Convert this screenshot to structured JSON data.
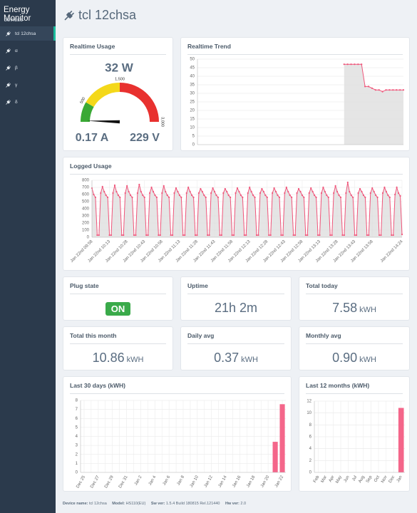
{
  "sidebar": {
    "title": "Energy Monitor",
    "section": "DEVICES",
    "items": [
      "tcl 12chsa",
      "α",
      "β",
      "γ",
      "δ"
    ]
  },
  "header": {
    "title": "tcl 12chsa"
  },
  "gauge": {
    "title": "Realtime Usage",
    "value": 32,
    "value_label": "32 W",
    "range": [
      0,
      3000
    ],
    "ticks": [
      500,
      {
        "value": 1500,
        "label": "1,500"
      },
      {
        "value": 3000,
        "label": "3,000"
      }
    ],
    "band_colors": [
      "#3aa935",
      "#f4d81a",
      "#e8312f"
    ],
    "current": "0.17 A",
    "voltage": "229 V"
  },
  "stats": [
    {
      "title": "Plug state",
      "badge": "ON"
    },
    {
      "title": "Uptime",
      "value": "21h 2m"
    },
    {
      "title": "Total today",
      "value": "7.58",
      "unit": "kWH"
    },
    {
      "title": "Total this month",
      "value": "10.86",
      "unit": "kWH"
    },
    {
      "title": "Daily avg",
      "value": "0.37",
      "unit": "kWH"
    },
    {
      "title": "Monthly avg",
      "value": "0.90",
      "unit": "kWH"
    }
  ],
  "chart_data": [
    {
      "type": "line",
      "title": "Realtime Trend",
      "color": "#f0557a",
      "fill": true,
      "fill_color": "#dcdcdc",
      "grid": true,
      "ylim": [
        0,
        50
      ],
      "yticks": [
        0,
        5,
        10,
        15,
        20,
        25,
        30,
        35,
        40,
        45,
        50
      ],
      "values": [
        null,
        null,
        null,
        null,
        null,
        null,
        null,
        null,
        null,
        null,
        null,
        null,
        null,
        null,
        null,
        null,
        null,
        null,
        null,
        null,
        null,
        null,
        null,
        null,
        null,
        null,
        null,
        null,
        null,
        null,
        null,
        null,
        null,
        null,
        null,
        null,
        null,
        null,
        null,
        null,
        null,
        null,
        47,
        47,
        47,
        47,
        47,
        47,
        34,
        34,
        33,
        32,
        32,
        31,
        32,
        32,
        32,
        32,
        32,
        32
      ]
    },
    {
      "type": "line",
      "title": "Logged Usage",
      "color": "#f0557a",
      "fill": true,
      "fill_color": "#dcdcdc",
      "grid": true,
      "ylim": [
        0,
        800
      ],
      "yticks": [
        0,
        100,
        200,
        300,
        400,
        500,
        600,
        700,
        800
      ],
      "categories": [
        "Jan 22nd 09:58",
        null,
        null,
        null,
        null,
        null,
        null,
        null,
        null,
        null,
        "Jan 22nd 10:13",
        null,
        null,
        null,
        null,
        null,
        null,
        null,
        null,
        null,
        "Jan 22nd 10:28",
        null,
        null,
        null,
        null,
        null,
        null,
        null,
        null,
        null,
        "Jan 22nd 10:43",
        null,
        null,
        null,
        null,
        null,
        null,
        null,
        null,
        null,
        "Jan 22nd 10:58",
        null,
        null,
        null,
        null,
        null,
        null,
        null,
        null,
        null,
        "Jan 22nd 11:13",
        null,
        null,
        null,
        null,
        null,
        null,
        null,
        null,
        null,
        "Jan 22nd 11:28",
        null,
        null,
        null,
        null,
        null,
        null,
        null,
        null,
        null,
        "Jan 22nd 11:43",
        null,
        null,
        null,
        null,
        null,
        null,
        null,
        null,
        null,
        "Jan 22nd 11:58",
        null,
        null,
        null,
        null,
        null,
        null,
        null,
        null,
        null,
        "Jan 22nd 12:13",
        null,
        null,
        null,
        null,
        null,
        null,
        null,
        null,
        null,
        "Jan 22nd 12:28",
        null,
        null,
        null,
        null,
        null,
        null,
        null,
        null,
        null,
        "Jan 22nd 12:43",
        null,
        null,
        null,
        null,
        null,
        null,
        null,
        null,
        null,
        "Jan 22nd 12:58",
        null,
        null,
        null,
        null,
        null,
        null,
        null,
        null,
        null,
        "Jan 22nd 13:13",
        null,
        null,
        null,
        null,
        null,
        null,
        null,
        null,
        null,
        "Jan 22nd 13:28",
        null,
        null,
        null,
        null,
        null,
        null,
        null,
        null,
        null,
        "Jan 22nd 13:43",
        null,
        null,
        null,
        null,
        null,
        null,
        null,
        null,
        null,
        "Jan 22nd 13:58",
        null,
        null,
        null,
        null,
        null,
        null,
        null,
        null,
        null,
        null,
        null,
        null,
        null,
        null,
        null,
        null,
        "Jan 22nd 14:24"
      ],
      "values": [
        690,
        600,
        560,
        30,
        30,
        620,
        710,
        640,
        590,
        560,
        30,
        30,
        620,
        730,
        640,
        590,
        560,
        30,
        30,
        620,
        720,
        640,
        590,
        560,
        30,
        30,
        620,
        740,
        640,
        590,
        560,
        30,
        30,
        620,
        700,
        640,
        590,
        560,
        30,
        30,
        620,
        720,
        640,
        590,
        560,
        30,
        30,
        620,
        690,
        640,
        590,
        560,
        30,
        30,
        620,
        700,
        640,
        590,
        560,
        30,
        30,
        620,
        680,
        640,
        590,
        560,
        30,
        30,
        620,
        690,
        640,
        590,
        560,
        30,
        30,
        620,
        680,
        640,
        590,
        560,
        30,
        30,
        620,
        690,
        640,
        590,
        560,
        30,
        30,
        620,
        700,
        640,
        590,
        560,
        30,
        30,
        620,
        680,
        640,
        590,
        560,
        30,
        30,
        620,
        690,
        640,
        590,
        560,
        30,
        30,
        620,
        700,
        640,
        590,
        560,
        30,
        30,
        620,
        680,
        640,
        590,
        560,
        30,
        30,
        620,
        690,
        640,
        590,
        560,
        30,
        30,
        620,
        700,
        640,
        590,
        560,
        30,
        30,
        620,
        720,
        640,
        590,
        560,
        30,
        30,
        620,
        770,
        640,
        590,
        560,
        30,
        30,
        620,
        680,
        640,
        590,
        560,
        30,
        30,
        620,
        690,
        640,
        590,
        560,
        30,
        30,
        620,
        700,
        640,
        590,
        560,
        30,
        30,
        600,
        700,
        620,
        580,
        40
      ]
    },
    {
      "type": "bar",
      "title": "Last 30 days (kWH)",
      "color": "#f4668a",
      "grid": true,
      "ylim": [
        0,
        8
      ],
      "yticks": [
        0,
        1,
        2,
        3,
        4,
        5,
        6,
        7,
        8
      ],
      "categories": [
        "Dec 25",
        null,
        "Dec 27",
        null,
        "Dec 29",
        null,
        "Dec 31",
        null,
        "Jan 2",
        null,
        "Jan 4",
        null,
        "Jan 6",
        null,
        "Jan 8",
        null,
        "Jan 10",
        null,
        "Jan 12",
        null,
        "Jan 14",
        null,
        "Jan 16",
        null,
        "Jan 18",
        null,
        "Jan 20",
        null,
        "Jan 22"
      ],
      "values": [
        0,
        0,
        0,
        0,
        0,
        0,
        0,
        0,
        0,
        0,
        0,
        0,
        0,
        0,
        0,
        0,
        0,
        0,
        0,
        0,
        0,
        0,
        0,
        0,
        0,
        0,
        0,
        3.4,
        7.58
      ]
    },
    {
      "type": "bar",
      "title": "Last 12 months (kWH)",
      "color": "#f4668a",
      "grid": true,
      "ylim": [
        0,
        12
      ],
      "yticks": [
        0,
        2,
        4,
        6,
        8,
        10,
        12
      ],
      "categories": [
        "Feb",
        "Mar",
        "Apr",
        "May",
        "Jun",
        "Jul",
        "Aug",
        "Sep",
        "Oct",
        "Nov",
        "Dec",
        "Jan"
      ],
      "values": [
        0,
        0,
        0,
        0,
        0,
        0,
        0,
        0,
        0,
        0,
        0,
        10.86
      ]
    }
  ],
  "footer": [
    {
      "label": "Device name:",
      "value": "tcl 12chsa"
    },
    {
      "label": "Model:",
      "value": "HS110(EU)"
    },
    {
      "label": "Sw ver:",
      "value": "1.5.4 Build 180815 Rel.121440"
    },
    {
      "label": "Hw ver:",
      "value": "2.0"
    }
  ]
}
